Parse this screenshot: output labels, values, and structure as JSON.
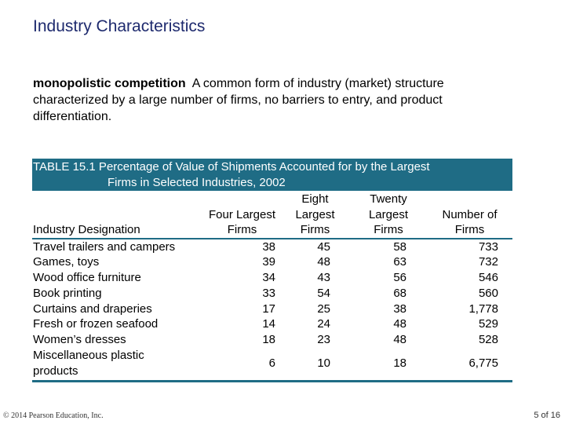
{
  "title": "Industry Characteristics",
  "definition": {
    "term": "monopolistic competition",
    "text": "A common form of industry (market) structure characterized by a large number of firms, no barriers to entry, and product differentiation."
  },
  "table": {
    "caption_line1": "TABLE 15.1  Percentage of Value of Shipments Accounted for by the Largest",
    "caption_line2": "Firms in Selected Industries, 2002",
    "headers": {
      "industry": "Industry Designation",
      "four_a": "Four Largest",
      "four_b": "Firms",
      "eight_a": "Eight",
      "eight_b": "Largest",
      "eight_c": "Firms",
      "twenty_a": "Twenty",
      "twenty_b": "Largest",
      "twenty_c": "Firms",
      "number_a": "Number of",
      "number_b": "Firms"
    },
    "rows": [
      {
        "name": "Travel trailers and campers",
        "four": "38",
        "eight": "45",
        "twenty": "58",
        "firms": "733"
      },
      {
        "name": "Games, toys",
        "four": "39",
        "eight": "48",
        "twenty": "63",
        "firms": "732"
      },
      {
        "name": "Wood office furniture",
        "four": "34",
        "eight": "43",
        "twenty": "56",
        "firms": "546"
      },
      {
        "name": "Book printing",
        "four": "33",
        "eight": "54",
        "twenty": "68",
        "firms": "560"
      },
      {
        "name": "Curtains and draperies",
        "four": "17",
        "eight": "25",
        "twenty": "38",
        "firms": "1,778"
      },
      {
        "name": "Fresh or frozen seafood",
        "four": "14",
        "eight": "24",
        "twenty": "48",
        "firms": "529"
      },
      {
        "name": "Women’s dresses",
        "four": "18",
        "eight": "23",
        "twenty": "48",
        "firms": "528"
      },
      {
        "name_line1": "Miscellaneous plastic",
        "name_line2": "products",
        "four": "6",
        "eight": "10",
        "twenty": "18",
        "firms": "6,775"
      }
    ]
  },
  "footer": {
    "copyright": "© 2014 Pearson Education, Inc.",
    "page": "5 of 16"
  },
  "colors": {
    "title": "#1e2a6e",
    "table_accent": "#1f6c85"
  }
}
